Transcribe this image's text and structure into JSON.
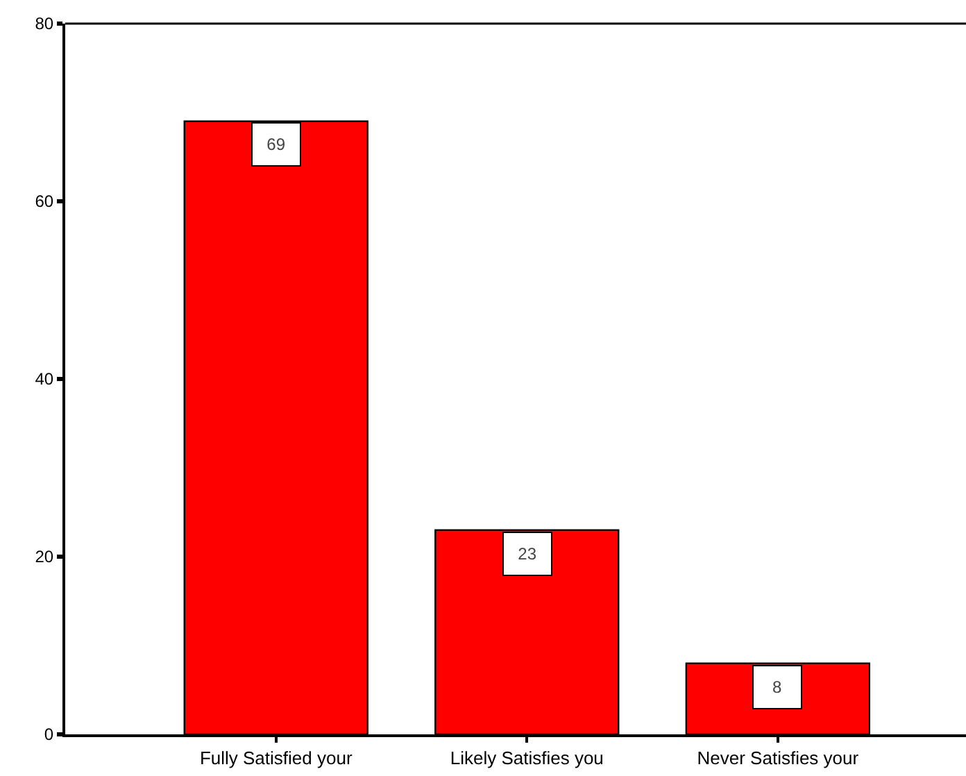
{
  "chart_data": {
    "type": "bar",
    "categories": [
      "Fully Satisfied your",
      "Likely Satisfies you",
      "Never Satisfies your"
    ],
    "values": [
      69,
      23,
      8
    ],
    "color": "#ff0000",
    "ylim": [
      0,
      80
    ],
    "yticks": [
      0,
      20,
      40,
      60,
      80
    ],
    "data_labels": true,
    "grid": false
  }
}
